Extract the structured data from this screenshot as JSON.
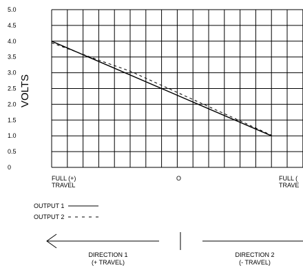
{
  "chart_data": {
    "type": "line",
    "ylabel": "VOLTS",
    "xlabel": "",
    "ylim": [
      0,
      5.0
    ],
    "y_ticks": [
      "5.0",
      "4.5",
      "4.0",
      "3.5",
      "3.0",
      "2.5",
      "2.0",
      "1.5",
      "1.0",
      "0.5",
      "0"
    ],
    "x_tick_labels": [
      {
        "lines": [
          "FULL (+)",
          "TRAVEL"
        ]
      },
      {
        "lines": [
          "O"
        ]
      },
      {
        "lines": [
          "FULL (",
          "TRAVE"
        ]
      }
    ],
    "grid": true,
    "series": [
      {
        "name": "OUTPUT 1",
        "style": "solid",
        "points": [
          [
            0,
            4.0
          ],
          [
            14,
            1.0
          ]
        ]
      },
      {
        "name": "OUTPUT 2",
        "style": "dashed",
        "points": [
          [
            0,
            3.95
          ],
          [
            3,
            3.4
          ],
          [
            5,
            3.05
          ],
          [
            7,
            2.6
          ],
          [
            9,
            2.15
          ],
          [
            11,
            1.7
          ],
          [
            13,
            1.25
          ],
          [
            14,
            1.02
          ]
        ]
      }
    ]
  },
  "legend": {
    "output1": "OUTPUT 1",
    "output2": "OUTPUT 2"
  },
  "directions": {
    "left_line1": "DIRECTION 1",
    "left_line2": "(+ TRAVEL)",
    "right_line1": "DIRECTION 2",
    "right_line2": "(- TRAVEL)"
  },
  "colors": {
    "line": "#000000",
    "grid": "#000000",
    "background": "#ffffff"
  }
}
